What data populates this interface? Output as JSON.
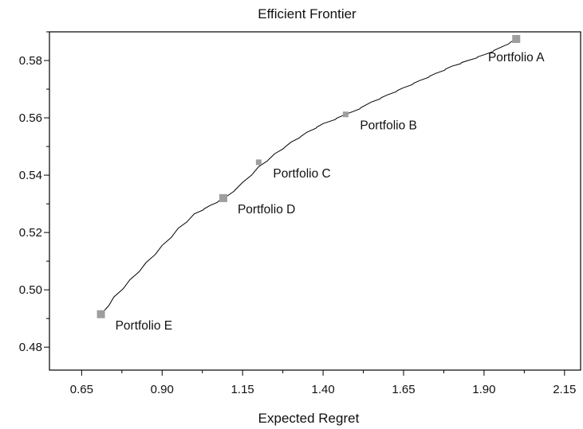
{
  "chart_data": {
    "type": "line",
    "title": "Efficient Frontier",
    "xlabel": "Expected Regret",
    "ylabel": "",
    "xlim": [
      0.55,
      2.2
    ],
    "ylim": [
      0.472,
      0.59
    ],
    "x_ticks": [
      0.65,
      0.9,
      1.15,
      1.4,
      1.65,
      1.9,
      2.15
    ],
    "x_tick_labels": [
      "0.65",
      "0.90",
      "1.15",
      "1.40",
      "1.65",
      "1.90",
      "2.15"
    ],
    "x_minor_step": 0.125,
    "y_ticks": [
      0.48,
      0.5,
      0.52,
      0.54,
      0.56,
      0.58
    ],
    "y_tick_labels": [
      "0.48",
      "0.50",
      "0.52",
      "0.54",
      "0.56",
      "0.58"
    ],
    "y_minor_step": 0.01,
    "grid": false,
    "series": [
      {
        "x": [
          0.71,
          0.75,
          0.8,
          0.85,
          0.9,
          0.95,
          1.0,
          1.05,
          1.09,
          1.15,
          1.2,
          1.25,
          1.3,
          1.35,
          1.4,
          1.47,
          1.55,
          1.6,
          1.65,
          1.7,
          1.75,
          1.8,
          1.85,
          1.9,
          1.95,
          2.0
        ],
        "y": [
          0.4915,
          0.4975,
          0.5035,
          0.5095,
          0.5155,
          0.5215,
          0.5265,
          0.5295,
          0.5318,
          0.5375,
          0.543,
          0.5475,
          0.5515,
          0.555,
          0.558,
          0.5612,
          0.5655,
          0.568,
          0.5705,
          0.573,
          0.5755,
          0.578,
          0.58,
          0.582,
          0.5845,
          0.5875
        ]
      }
    ],
    "points": [
      {
        "label": "Portfolio A",
        "x": 2.0,
        "y": 0.5875,
        "label_pos": "below"
      },
      {
        "label": "Portfolio B",
        "x": 1.47,
        "y": 0.5612,
        "label_pos": "below-right"
      },
      {
        "label": "Portfolio C",
        "x": 1.2,
        "y": 0.5445,
        "label_pos": "below-right"
      },
      {
        "label": "Portfolio D",
        "x": 1.09,
        "y": 0.532,
        "label_pos": "below-right"
      },
      {
        "label": "Portfolio E",
        "x": 0.71,
        "y": 0.4915,
        "label_pos": "below-right"
      }
    ]
  }
}
